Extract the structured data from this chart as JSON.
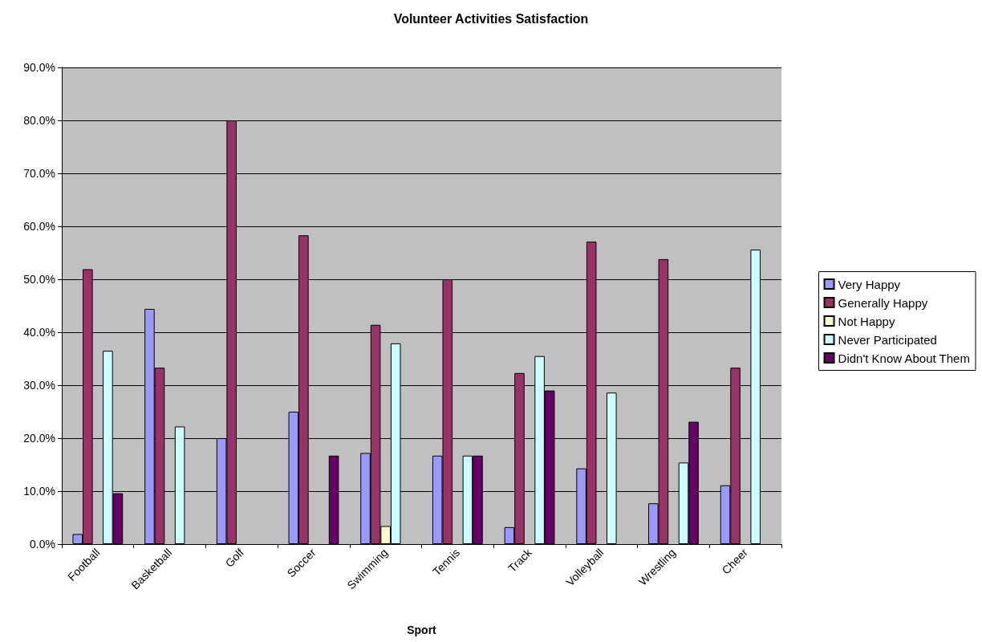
{
  "chart_data": {
    "type": "bar",
    "title": "Volunteer Activities Satisfaction",
    "xlabel": "Sport",
    "categories": [
      "Football",
      "Basketball",
      "Golf",
      "Soccer",
      "Swimming",
      "Tennis",
      "Track",
      "Volleyball",
      "Wrestling",
      "Cheer"
    ],
    "series": [
      {
        "name": "Very Happy",
        "color": "#9999ff",
        "values": [
          1.9,
          44.4,
          20,
          25,
          17.2,
          16.7,
          3.2,
          14.3,
          7.7,
          11.1
        ]
      },
      {
        "name": "Generally Happy",
        "color": "#993366",
        "values": [
          51.9,
          33.3,
          80,
          58.3,
          41.4,
          50,
          32.3,
          57.1,
          53.8,
          33.3
        ]
      },
      {
        "name": "Not Happy",
        "color": "#ffffcc",
        "values": [
          0,
          0,
          0,
          0,
          3.4,
          0,
          0,
          0,
          0,
          0
        ]
      },
      {
        "name": "Never Participated",
        "color": "#ccffff",
        "values": [
          36.5,
          22.2,
          0,
          0,
          37.9,
          16.7,
          35.5,
          28.6,
          15.4,
          55.6
        ]
      },
      {
        "name": "Didn't Know About Them",
        "color": "#660066",
        "values": [
          9.6,
          0,
          0,
          16.7,
          0,
          16.7,
          29,
          0,
          23.1,
          0
        ]
      }
    ],
    "ylim": [
      0,
      90
    ],
    "yticks": [
      {
        "value": 0,
        "label": "0.0%"
      },
      {
        "value": 10,
        "label": "10.0%"
      },
      {
        "value": 20,
        "label": "20.0%"
      },
      {
        "value": 30,
        "label": "30.0%"
      },
      {
        "value": 40,
        "label": "40.0%"
      },
      {
        "value": 50,
        "label": "50.0%"
      },
      {
        "value": 60,
        "label": "60.0%"
      },
      {
        "value": 70,
        "label": "70.0%"
      },
      {
        "value": 80,
        "label": "80.0%"
      },
      {
        "value": 90,
        "label": "90.0%"
      }
    ],
    "grid": "y",
    "legend": "right"
  }
}
